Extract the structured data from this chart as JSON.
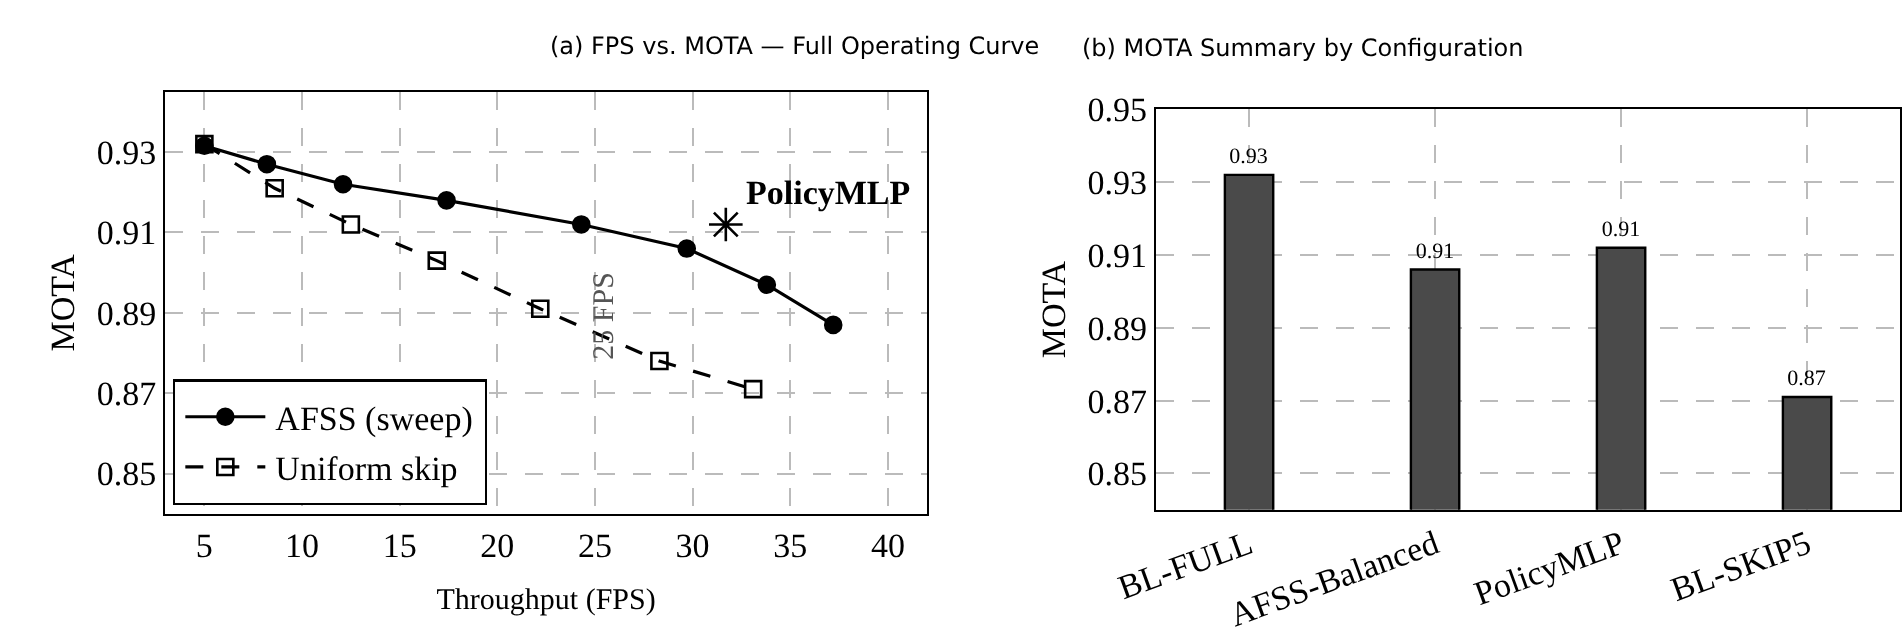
{
  "chart_data": [
    {
      "type": "line",
      "title": "(a) FPS vs. MOTA — Full Operating Curve",
      "xlabel": "Throughput (FPS)",
      "ylabel": "MOTA",
      "xlim": [
        3,
        42
      ],
      "xticks": [
        5,
        10,
        15,
        20,
        25,
        30,
        35,
        40
      ],
      "ylim": [
        0.84,
        0.945
      ],
      "yticks": [
        0.85,
        0.87,
        0.89,
        0.91,
        0.93
      ],
      "grid": true,
      "legend": "bottom left",
      "series": [
        {
          "name": "AFSS (sweep)",
          "color": "#000000",
          "marker": "circle",
          "line_style": "solid",
          "x": [
            5,
            8.2,
            12.1,
            17.4,
            24.3,
            29.7,
            33.8,
            37.2
          ],
          "values": [
            0.9316,
            0.927,
            0.922,
            0.918,
            0.912,
            0.906,
            0.897,
            0.887
          ]
        },
        {
          "name": "Uniform skip",
          "color": "#000000",
          "marker": "square",
          "line_style": "dashed",
          "x": [
            5,
            8.6,
            12.5,
            16.9,
            22.2,
            28.3,
            33.1
          ],
          "values": [
            0.932,
            0.921,
            0.912,
            0.903,
            0.891,
            0.878,
            0.871
          ]
        },
        {
          "name": "PolicyMLP",
          "type": "scatter",
          "color": "#000000",
          "marker": "cross",
          "x": [
            31.7
          ],
          "values": [
            0.912
          ]
        }
      ],
      "annotations": [
        "25 FPS"
      ]
    },
    {
      "type": "bar",
      "title": "(b) MOTA Summary by Configuration",
      "ylabel": "MOTA",
      "categories": [
        "BL-FULL",
        "AFSS-Balanced",
        "PolicyMLP",
        "BL-SKIP5"
      ],
      "values": [
        0.932,
        0.906,
        0.912,
        0.871
      ],
      "value_labels": [
        "0.93",
        "0.91",
        "0.91",
        "0.87"
      ],
      "color": "#4a4a4a",
      "ylim": [
        0.84,
        0.95
      ],
      "yticks": [
        0.85,
        0.87,
        0.89,
        0.91,
        0.93,
        0.95
      ],
      "grid": true
    }
  ]
}
